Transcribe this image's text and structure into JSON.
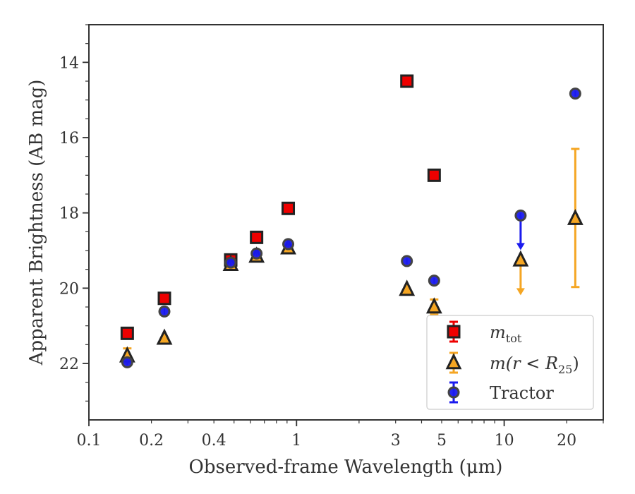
{
  "chart_data": {
    "type": "scatter",
    "xlabel": "Observed-frame Wavelength (μm)",
    "ylabel": "Apparent Brightness (AB mag)",
    "xscale": "log",
    "xlim": [
      0.1,
      30
    ],
    "ylim": [
      23.5,
      13
    ],
    "y_inverted": true,
    "grid": false,
    "legend_position": "lower-right",
    "x_ticks": [
      {
        "value": 0.1,
        "label": "0.1"
      },
      {
        "value": 0.2,
        "label": "0.2"
      },
      {
        "value": 0.4,
        "label": "0.4"
      },
      {
        "value": 1,
        "label": "1"
      },
      {
        "value": 3,
        "label": "3"
      },
      {
        "value": 5,
        "label": "5"
      },
      {
        "value": 10,
        "label": "10"
      },
      {
        "value": 20,
        "label": "20"
      }
    ],
    "y_ticks": [
      {
        "value": 14,
        "label": "14"
      },
      {
        "value": 16,
        "label": "16"
      },
      {
        "value": 18,
        "label": "18"
      },
      {
        "value": 20,
        "label": "20"
      },
      {
        "value": 22,
        "label": "22"
      }
    ],
    "series": [
      {
        "name": "m_tot",
        "legend_main": "m",
        "legend_sub": "tot",
        "marker": "square",
        "color": "#ee0000",
        "edge_color": "#222222",
        "points": [
          {
            "x": 0.153,
            "y": 21.2
          },
          {
            "x": 0.231,
            "y": 20.27
          },
          {
            "x": 0.482,
            "y": 19.25
          },
          {
            "x": 0.642,
            "y": 18.65
          },
          {
            "x": 0.912,
            "y": 17.88
          },
          {
            "x": 3.4,
            "y": 14.5
          },
          {
            "x": 4.6,
            "y": 17.0
          }
        ]
      },
      {
        "name": "m(r < R25)",
        "legend_main": "m(r < R",
        "legend_sub": "25",
        "legend_tail": ")",
        "marker": "triangle",
        "color": "#f5a623",
        "edge_color": "#222222",
        "points": [
          {
            "x": 0.153,
            "y": 21.8,
            "yerr": 0.2
          },
          {
            "x": 0.231,
            "y": 21.33
          },
          {
            "x": 0.482,
            "y": 19.37
          },
          {
            "x": 0.642,
            "y": 19.15
          },
          {
            "x": 0.912,
            "y": 18.93
          },
          {
            "x": 3.4,
            "y": 20.03
          },
          {
            "x": 4.6,
            "y": 20.5,
            "yerr": 0.2
          },
          {
            "x": 12.0,
            "y": 19.25,
            "upper_limit_to": 20.15
          },
          {
            "x": 22.0,
            "y": 18.15,
            "ylow": 16.3,
            "yhigh": 19.97
          }
        ]
      },
      {
        "name": "Tractor",
        "legend_main": "Tractor",
        "marker": "circle",
        "color": "#1a1aee",
        "edge_color": "#444444",
        "points": [
          {
            "x": 0.153,
            "y": 21.97
          },
          {
            "x": 0.231,
            "y": 20.62
          },
          {
            "x": 0.482,
            "y": 19.32
          },
          {
            "x": 0.642,
            "y": 19.08
          },
          {
            "x": 0.912,
            "y": 18.83
          },
          {
            "x": 3.4,
            "y": 19.28
          },
          {
            "x": 4.6,
            "y": 19.8
          },
          {
            "x": 12.0,
            "y": 18.07,
            "upper_limit_to": 18.95
          },
          {
            "x": 22.0,
            "y": 14.83
          }
        ]
      }
    ]
  }
}
